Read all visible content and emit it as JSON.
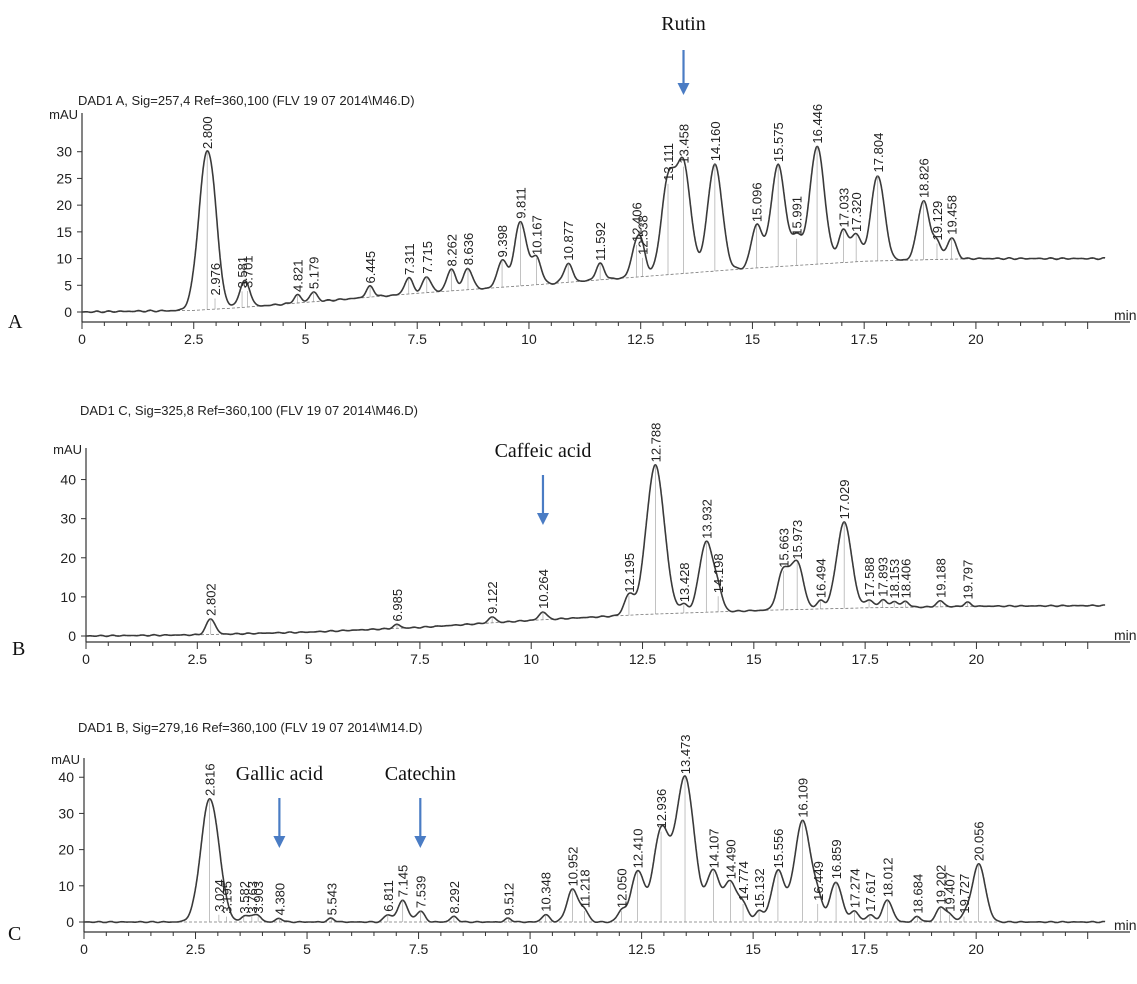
{
  "colors": {
    "trace": "#3a3a3a",
    "annotation_arrow": "#4a7cc4",
    "text": "#222222"
  },
  "chart_data": [
    {
      "type": "line",
      "panel_label": "A",
      "header": "DAD1 A, Sig=257,4 Ref=360,100 (FLV 19 07 2014\\M46.D)",
      "ylabel": "mAU",
      "xlabel": "min",
      "xlim": [
        0,
        23.0
      ],
      "ylim": [
        -1,
        35
      ],
      "xticks": [
        0,
        2.5,
        5,
        7.5,
        10,
        12.5,
        15,
        17.5,
        20
      ],
      "xtick_labels": [
        "0",
        "2.5",
        "5",
        "7.5",
        "10",
        "12.5",
        "15",
        "17.5",
        "20"
      ],
      "yticks": [
        0,
        5,
        10,
        15,
        20,
        25,
        30
      ],
      "baseline": [
        [
          0,
          0
        ],
        [
          2.5,
          0.3
        ],
        [
          3.5,
          0.8
        ],
        [
          5,
          1.8
        ],
        [
          7.5,
          3.5
        ],
        [
          10,
          5
        ],
        [
          12.5,
          6.6
        ],
        [
          15,
          8.2
        ],
        [
          17.5,
          9.5
        ],
        [
          20,
          10
        ],
        [
          23,
          10
        ]
      ],
      "peaks": [
        {
          "rt": 2.8,
          "label": "2.800",
          "height": 29.5
        },
        {
          "rt": 2.976,
          "label": "2.976",
          "height": 2.0
        },
        {
          "rt": 3.581,
          "label": "3.581",
          "height": 3.0
        },
        {
          "rt": 3.701,
          "label": "3.701",
          "height": 3.0
        },
        {
          "rt": 4.821,
          "label": "4.821",
          "height": 1.5
        },
        {
          "rt": 5.179,
          "label": "5.179",
          "height": 1.8
        },
        {
          "rt": 6.445,
          "label": "6.445",
          "height": 2.0
        },
        {
          "rt": 7.311,
          "label": "7.311",
          "height": 3.0
        },
        {
          "rt": 7.715,
          "label": "7.715",
          "height": 3.0
        },
        {
          "rt": 8.262,
          "label": "8.262",
          "height": 4.0
        },
        {
          "rt": 8.636,
          "label": "8.636",
          "height": 4.0
        },
        {
          "rt": 9.398,
          "label": "9.398",
          "height": 5.0
        },
        {
          "rt": 9.811,
          "label": "9.811",
          "height": 12.0
        },
        {
          "rt": 10.167,
          "label": "10.167",
          "height": 5.0
        },
        {
          "rt": 10.877,
          "label": "10.877",
          "height": 3.5
        },
        {
          "rt": 11.592,
          "label": "11.592",
          "height": 3.0
        },
        {
          "rt": 12.406,
          "label": "12.406",
          "height": 6.0
        },
        {
          "rt": 12.538,
          "label": "12.538",
          "height": 3.5
        },
        {
          "rt": 13.111,
          "label": "13.111",
          "height": 17.0
        },
        {
          "rt": 13.458,
          "label": "13.458",
          "height": 20.0
        },
        {
          "rt": 14.16,
          "label": "14.160",
          "height": 20.0
        },
        {
          "rt": 15.096,
          "label": "15.096",
          "height": 8.0
        },
        {
          "rt": 15.575,
          "label": "15.575",
          "height": 19.0
        },
        {
          "rt": 15.991,
          "label": "15.991",
          "height": 5.0
        },
        {
          "rt": 16.446,
          "label": "16.446",
          "height": 22.0
        },
        {
          "rt": 17.033,
          "label": "17.033",
          "height": 6.0
        },
        {
          "rt": 17.32,
          "label": "17.320",
          "height": 5.0
        },
        {
          "rt": 17.804,
          "label": "17.804",
          "height": 16.0
        },
        {
          "rt": 18.826,
          "label": "18.826",
          "height": 11.0
        },
        {
          "rt": 19.129,
          "label": "19.129",
          "height": 3.0
        },
        {
          "rt": 19.458,
          "label": "19.458",
          "height": 4.0
        }
      ],
      "annotations": [
        {
          "text": "Rutin",
          "rt": 13.458
        }
      ]
    },
    {
      "type": "line",
      "panel_label": "B",
      "header": "DAD1 C, Sig=325,8 Ref=360,100 (FLV 19 07 2014\\M46.D)",
      "ylabel": "mAU",
      "xlabel": "min",
      "xlim": [
        0,
        23.0
      ],
      "ylim": [
        -1,
        45
      ],
      "xticks": [
        0,
        2.5,
        5,
        7.5,
        10,
        12.5,
        15,
        17.5,
        20
      ],
      "xtick_labels": [
        "0",
        "2.5",
        "5",
        "7.5",
        "10",
        "12.5",
        "15",
        "17.5",
        "20"
      ],
      "yticks": [
        0,
        10,
        20,
        30,
        40
      ],
      "baseline": [
        [
          0,
          0
        ],
        [
          2.5,
          0.3
        ],
        [
          5,
          1
        ],
        [
          7.5,
          2.2
        ],
        [
          10,
          4
        ],
        [
          12.5,
          5.5
        ],
        [
          15,
          6.5
        ],
        [
          17.5,
          7.2
        ],
        [
          20,
          7.6
        ],
        [
          23,
          7.8
        ]
      ],
      "peaks": [
        {
          "rt": 2.802,
          "label": "2.802",
          "height": 4.0
        },
        {
          "rt": 6.985,
          "label": "6.985",
          "height": 1.0
        },
        {
          "rt": 9.122,
          "label": "9.122",
          "height": 1.5
        },
        {
          "rt": 10.264,
          "label": "10.264",
          "height": 2.0
        },
        {
          "rt": 12.195,
          "label": "12.195",
          "height": 5.0
        },
        {
          "rt": 12.788,
          "label": "12.788",
          "height": 38.0
        },
        {
          "rt": 13.428,
          "label": "13.428",
          "height": 2.0
        },
        {
          "rt": 13.932,
          "label": "13.932",
          "height": 18.0
        },
        {
          "rt": 14.198,
          "label": "14.198",
          "height": 4.0
        },
        {
          "rt": 15.663,
          "label": "15.663",
          "height": 10.0
        },
        {
          "rt": 15.973,
          "label": "15.973",
          "height": 12.0
        },
        {
          "rt": 16.494,
          "label": "16.494",
          "height": 2.0
        },
        {
          "rt": 17.029,
          "label": "17.029",
          "height": 22.0
        },
        {
          "rt": 17.588,
          "label": "17.588",
          "height": 2.0
        },
        {
          "rt": 17.893,
          "label": "17.893",
          "height": 2.0
        },
        {
          "rt": 18.153,
          "label": "18.153",
          "height": 1.5
        },
        {
          "rt": 18.406,
          "label": "18.406",
          "height": 1.5
        },
        {
          "rt": 19.188,
          "label": "19.188",
          "height": 1.5
        },
        {
          "rt": 19.797,
          "label": "19.797",
          "height": 1.0
        }
      ],
      "annotations": [
        {
          "text": "Caffeic acid",
          "rt": 10.264
        }
      ]
    },
    {
      "type": "line",
      "panel_label": "C",
      "header": "DAD1 B, Sig=279,16 Ref=360,100 (FLV 19 07 2014\\M14.D)",
      "ylabel": "mAU",
      "xlabel": "min",
      "xlim": [
        0,
        23.0
      ],
      "ylim": [
        -2,
        42
      ],
      "xticks": [
        0,
        2.5,
        5,
        7.5,
        10,
        12.5,
        15,
        17.5,
        20
      ],
      "xtick_labels": [
        "0",
        "2.5",
        "5",
        "7.5",
        "10",
        "12.5",
        "15",
        "17.5",
        "20"
      ],
      "yticks": [
        0,
        10,
        20,
        30,
        40
      ],
      "baseline": [
        [
          0,
          0
        ],
        [
          23,
          0
        ]
      ],
      "peaks": [
        {
          "rt": 2.816,
          "label": "2.816",
          "height": 34.0
        },
        {
          "rt": 3.024,
          "label": "3.024",
          "height": 2.0
        },
        {
          "rt": 3.195,
          "label": "3.195",
          "height": 1.5
        },
        {
          "rt": 3.582,
          "label": "3.582",
          "height": 1.5
        },
        {
          "rt": 3.763,
          "label": "3.763",
          "height": 1.5
        },
        {
          "rt": 3.903,
          "label": "3.903",
          "height": 1.5
        },
        {
          "rt": 4.38,
          "label": "4.380",
          "height": 1.0
        },
        {
          "rt": 5.543,
          "label": "5.543",
          "height": 1.0
        },
        {
          "rt": 6.811,
          "label": "6.811",
          "height": 2.0
        },
        {
          "rt": 7.145,
          "label": "7.145",
          "height": 6.0
        },
        {
          "rt": 7.539,
          "label": "7.539",
          "height": 3.0
        },
        {
          "rt": 8.292,
          "label": "8.292",
          "height": 1.5
        },
        {
          "rt": 9.512,
          "label": "9.512",
          "height": 1.0
        },
        {
          "rt": 10.348,
          "label": "10.348",
          "height": 2.0
        },
        {
          "rt": 10.952,
          "label": "10.952",
          "height": 9.0
        },
        {
          "rt": 11.218,
          "label": "11.218",
          "height": 3.0
        },
        {
          "rt": 12.05,
          "label": "12.050",
          "height": 3.0
        },
        {
          "rt": 12.41,
          "label": "12.410",
          "height": 14.0
        },
        {
          "rt": 12.936,
          "label": "12.936",
          "height": 25.0
        },
        {
          "rt": 13.473,
          "label": "13.473",
          "height": 40.0
        },
        {
          "rt": 14.107,
          "label": "14.107",
          "height": 14.0
        },
        {
          "rt": 14.49,
          "label": "14.490",
          "height": 11.0
        },
        {
          "rt": 14.774,
          "label": "14.774",
          "height": 5.0
        },
        {
          "rt": 15.132,
          "label": "15.132",
          "height": 3.0
        },
        {
          "rt": 15.556,
          "label": "15.556",
          "height": 14.0
        },
        {
          "rt": 16.109,
          "label": "16.109",
          "height": 28.0
        },
        {
          "rt": 16.449,
          "label": "16.449",
          "height": 5.0
        },
        {
          "rt": 16.859,
          "label": "16.859",
          "height": 11.0
        },
        {
          "rt": 17.274,
          "label": "17.274",
          "height": 3.0
        },
        {
          "rt": 17.617,
          "label": "17.617",
          "height": 2.0
        },
        {
          "rt": 18.012,
          "label": "18.012",
          "height": 6.0
        },
        {
          "rt": 18.684,
          "label": "18.684",
          "height": 1.5
        },
        {
          "rt": 19.202,
          "label": "19.202",
          "height": 4.0
        },
        {
          "rt": 19.407,
          "label": "19.407",
          "height": 2.0
        },
        {
          "rt": 19.727,
          "label": "19.727",
          "height": 1.5
        },
        {
          "rt": 20.056,
          "label": "20.056",
          "height": 16.0
        }
      ],
      "annotations": [
        {
          "text": "Gallic  acid",
          "rt": 4.38
        },
        {
          "text": "Catechin",
          "rt": 7.539
        }
      ]
    }
  ]
}
